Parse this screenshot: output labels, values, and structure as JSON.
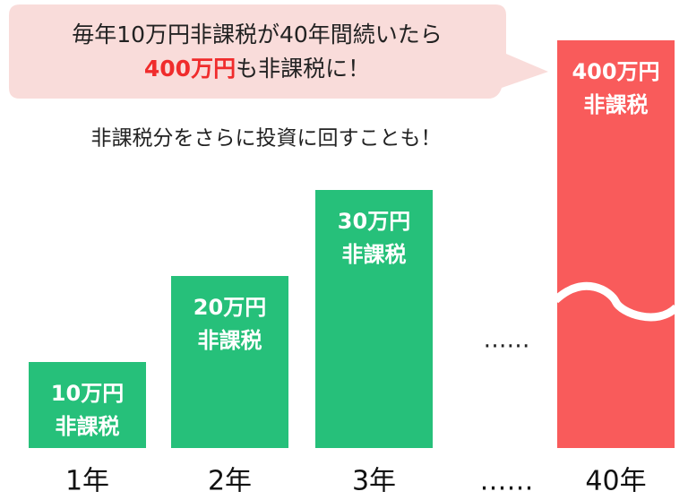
{
  "chart_data": {
    "type": "bar",
    "title": "毎年10万円非課税が40年間続いたら",
    "highlight": "400万円",
    "title_suffix": "も非課税に！",
    "subtitle": "非課税分をさらに投資に回すことも！",
    "categories": [
      "1年",
      "2年",
      "3年",
      "……",
      "40年"
    ],
    "values": [
      10,
      20,
      30,
      null,
      400
    ],
    "value_labels": [
      "10万円",
      "20万円",
      "30万円",
      null,
      "400万円"
    ],
    "bar_note": "非課税",
    "colors": [
      "#26c07a",
      "#26c07a",
      "#26c07a",
      null,
      "#f95b5b"
    ]
  }
}
